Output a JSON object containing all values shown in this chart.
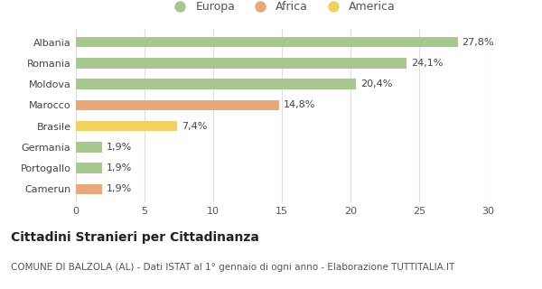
{
  "categories": [
    "Camerun",
    "Portogallo",
    "Germania",
    "Brasile",
    "Marocco",
    "Moldova",
    "Romania",
    "Albania"
  ],
  "values": [
    1.9,
    1.9,
    1.9,
    7.4,
    14.8,
    20.4,
    24.1,
    27.8
  ],
  "labels": [
    "1,9%",
    "1,9%",
    "1,9%",
    "7,4%",
    "14,8%",
    "20,4%",
    "24,1%",
    "27,8%"
  ],
  "colors": [
    "#e8a87c",
    "#a8c68f",
    "#a8c68f",
    "#f0d060",
    "#e8a87c",
    "#a8c68f",
    "#a8c68f",
    "#a8c68f"
  ],
  "legend_items": [
    {
      "label": "Europa",
      "color": "#a8c68f"
    },
    {
      "label": "Africa",
      "color": "#e8a87c"
    },
    {
      "label": "America",
      "color": "#f0d060"
    }
  ],
  "xlim": [
    0,
    30
  ],
  "xticks": [
    0,
    5,
    10,
    15,
    20,
    25,
    30
  ],
  "title": "Cittadini Stranieri per Cittadinanza",
  "subtitle": "COMUNE DI BALZOLA (AL) - Dati ISTAT al 1° gennaio di ogni anno - Elaborazione TUTTITALIA.IT",
  "background_color": "#ffffff",
  "bar_height": 0.5,
  "grid_color": "#dddddd",
  "label_fontsize": 8,
  "tick_fontsize": 8,
  "title_fontsize": 10,
  "subtitle_fontsize": 7.5,
  "legend_fontsize": 9
}
